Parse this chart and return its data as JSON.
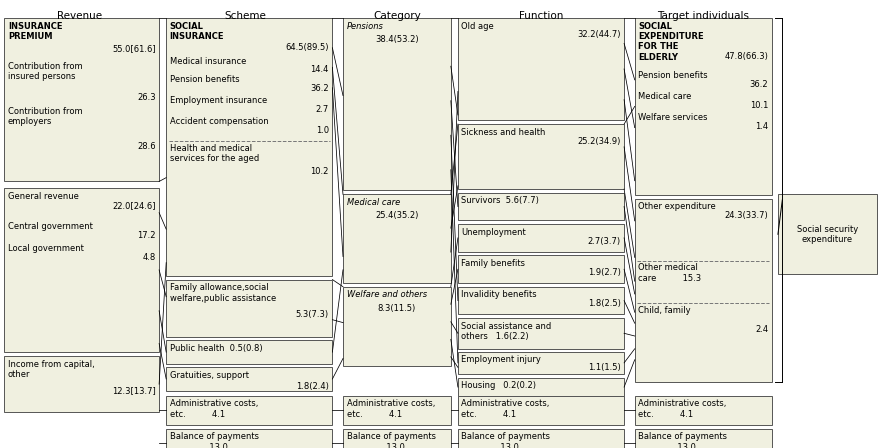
{
  "fs": 6.0,
  "bg": "#f0f0e0",
  "ec": "#555555",
  "col_x": {
    "rev": 0.005,
    "sch": 0.188,
    "cat": 0.388,
    "fun": 0.518,
    "tgt": 0.718
  },
  "col_w": {
    "rev": 0.175,
    "sch": 0.188,
    "cat": 0.122,
    "fun": 0.188,
    "tgt": 0.155
  },
  "titles": {
    "rev": [
      "Revenue",
      0.09
    ],
    "sch": [
      "Scheme",
      0.278
    ],
    "cat": [
      "Category",
      0.449
    ],
    "fun": [
      "Function",
      0.612
    ],
    "tgt": [
      "Target individuals",
      0.795
    ]
  }
}
